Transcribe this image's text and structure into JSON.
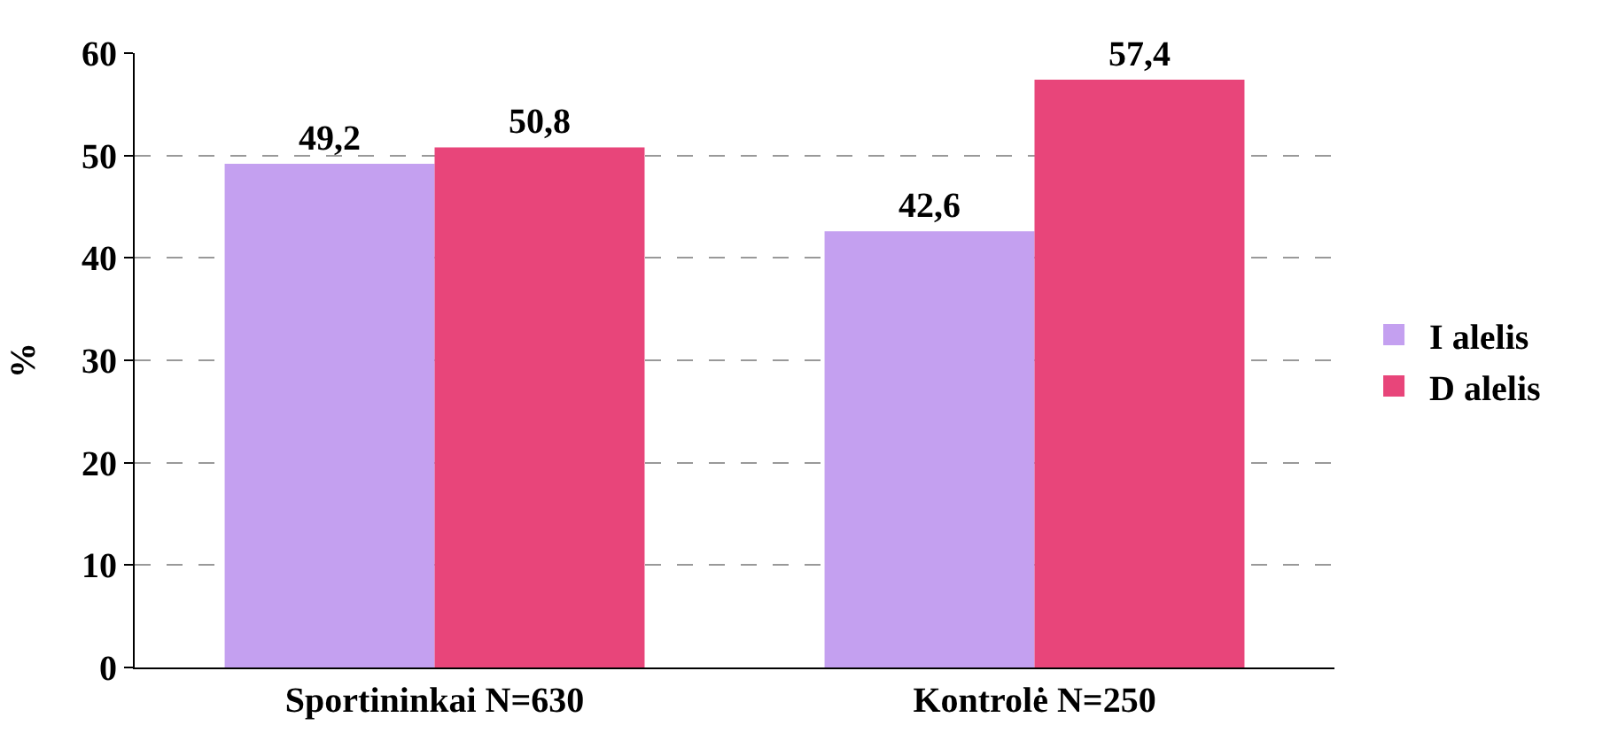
{
  "chart_data": {
    "type": "bar",
    "ylabel": "%",
    "categories": [
      "Sportininkai N=630",
      "Kontrolė N=250"
    ],
    "series": [
      {
        "name": "I alelis",
        "color": "#c4a0f0",
        "values": [
          49.2,
          42.6
        ],
        "value_labels": [
          "49,2",
          "42,6"
        ]
      },
      {
        "name": "D alelis",
        "color": "#e8457a",
        "values": [
          50.8,
          57.4
        ],
        "value_labels": [
          "50,8",
          "57,4"
        ]
      }
    ],
    "ylim": [
      0,
      60
    ],
    "yticks": [
      0,
      10,
      20,
      30,
      40,
      50,
      60
    ],
    "grid": "y",
    "legend": "right"
  }
}
